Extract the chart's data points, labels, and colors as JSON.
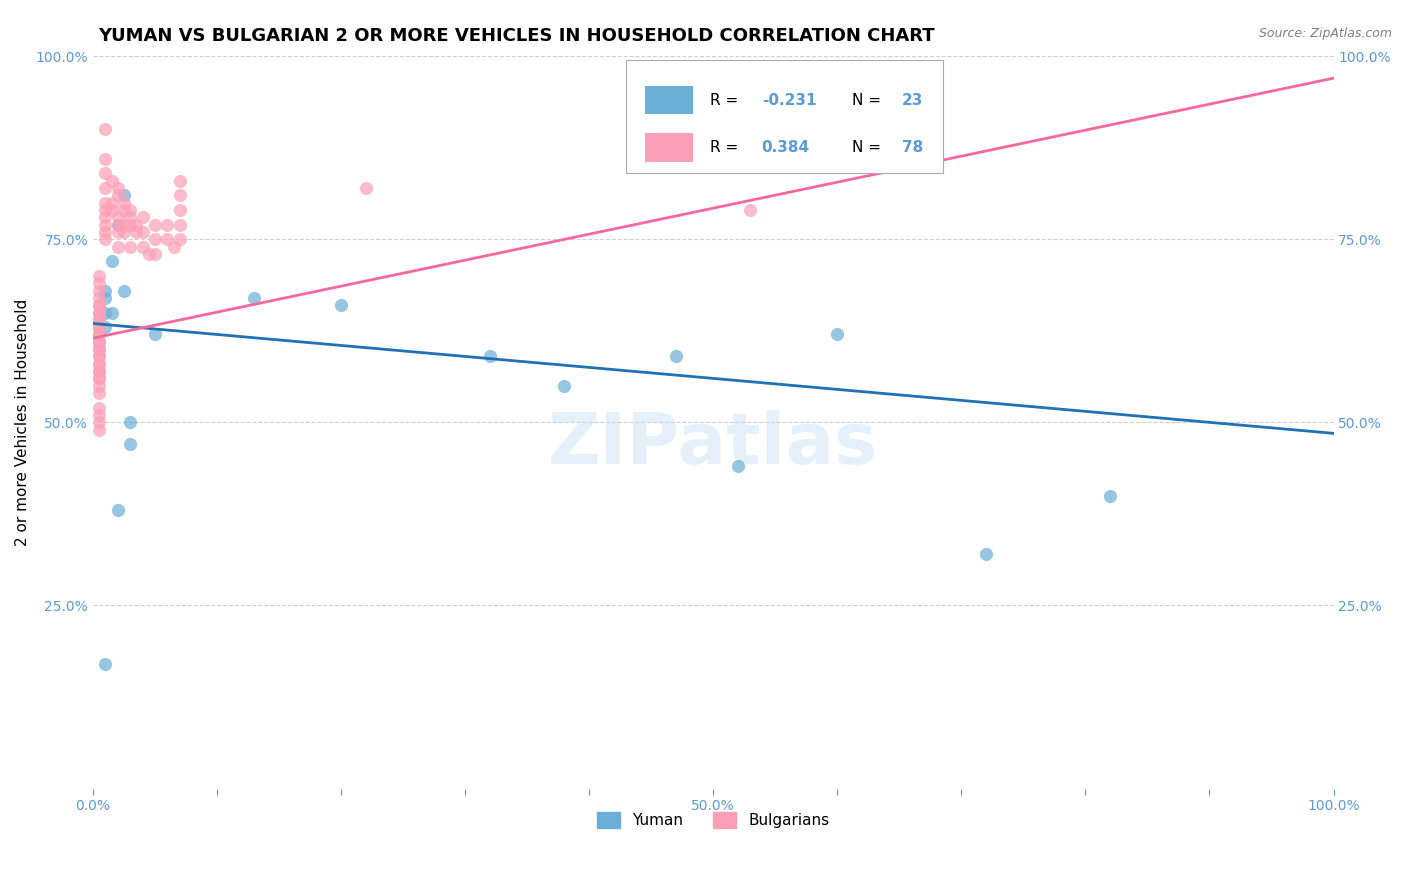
{
  "title": "YUMAN VS BULGARIAN 2 OR MORE VEHICLES IN HOUSEHOLD CORRELATION CHART",
  "source_text": "Source: ZipAtlas.com",
  "ylabel": "2 or more Vehicles in Household",
  "xlim": [
    0.0,
    1.0
  ],
  "ylim": [
    0.0,
    1.0
  ],
  "xticks": [
    0.0,
    0.1,
    0.2,
    0.3,
    0.4,
    0.5,
    0.6,
    0.7,
    0.8,
    0.9,
    1.0
  ],
  "yticks": [
    0.0,
    0.25,
    0.5,
    0.75,
    1.0
  ],
  "ytick_labels": [
    "",
    "25.0%",
    "50.0%",
    "75.0%",
    "100.0%"
  ],
  "xtick_labels": [
    "0.0%",
    "",
    "",
    "",
    "",
    "50.0%",
    "",
    "",
    "",
    "",
    "100.0%"
  ],
  "bg_color": "#ffffff",
  "watermark": "ZIPatlas",
  "blue_color": "#6baed6",
  "pink_color": "#fa9fb5",
  "blue_line_color": "#2171b5",
  "pink_line_color": "#f768a1",
  "legend_R_blue": "-0.231",
  "legend_N_blue": "23",
  "legend_R_pink": "0.384",
  "legend_N_pink": "78",
  "yuman_label": "Yuman",
  "bulgarian_label": "Bulgarians",
  "blue_scatter_x": [
    0.02,
    0.01,
    0.015,
    0.01,
    0.01,
    0.02,
    0.025,
    0.01,
    0.13,
    0.2,
    0.32,
    0.38,
    0.47,
    0.52,
    0.6,
    0.72,
    0.82,
    0.03,
    0.03,
    0.015,
    0.025,
    0.05,
    0.01
  ],
  "blue_scatter_y": [
    0.38,
    0.67,
    0.72,
    0.63,
    0.68,
    0.77,
    0.81,
    0.65,
    0.67,
    0.66,
    0.59,
    0.55,
    0.59,
    0.44,
    0.62,
    0.32,
    0.4,
    0.5,
    0.47,
    0.65,
    0.68,
    0.62,
    0.17
  ],
  "pink_scatter_x": [
    0.005,
    0.005,
    0.005,
    0.005,
    0.005,
    0.005,
    0.005,
    0.005,
    0.005,
    0.005,
    0.005,
    0.01,
    0.01,
    0.01,
    0.01,
    0.01,
    0.01,
    0.01,
    0.01,
    0.01,
    0.01,
    0.015,
    0.015,
    0.015,
    0.02,
    0.02,
    0.02,
    0.02,
    0.02,
    0.02,
    0.025,
    0.025,
    0.025,
    0.025,
    0.03,
    0.03,
    0.03,
    0.03,
    0.035,
    0.035,
    0.04,
    0.04,
    0.04,
    0.045,
    0.05,
    0.05,
    0.05,
    0.06,
    0.06,
    0.065,
    0.07,
    0.07,
    0.07,
    0.07,
    0.07,
    0.005,
    0.005,
    0.005,
    0.005,
    0.005,
    0.005,
    0.005,
    0.005,
    0.005,
    0.005,
    0.005,
    0.005,
    0.005,
    0.005,
    0.005,
    0.005,
    0.005,
    0.22,
    0.53,
    0.005,
    0.005,
    0.005,
    0.005
  ],
  "pink_scatter_y": [
    0.66,
    0.65,
    0.64,
    0.63,
    0.62,
    0.61,
    0.6,
    0.59,
    0.58,
    0.57,
    0.56,
    0.9,
    0.86,
    0.84,
    0.82,
    0.8,
    0.79,
    0.78,
    0.77,
    0.76,
    0.75,
    0.83,
    0.8,
    0.79,
    0.82,
    0.81,
    0.78,
    0.77,
    0.76,
    0.74,
    0.8,
    0.79,
    0.77,
    0.76,
    0.79,
    0.78,
    0.77,
    0.74,
    0.77,
    0.76,
    0.78,
    0.76,
    0.74,
    0.73,
    0.77,
    0.75,
    0.73,
    0.77,
    0.75,
    0.74,
    0.83,
    0.81,
    0.79,
    0.77,
    0.75,
    0.7,
    0.69,
    0.68,
    0.67,
    0.66,
    0.65,
    0.64,
    0.63,
    0.62,
    0.61,
    0.6,
    0.59,
    0.58,
    0.57,
    0.56,
    0.55,
    0.54,
    0.82,
    0.79,
    0.52,
    0.51,
    0.5,
    0.49
  ],
  "blue_line_x": [
    0.0,
    1.0
  ],
  "blue_line_y": [
    0.635,
    0.485
  ],
  "pink_line_x": [
    0.0,
    1.0
  ],
  "pink_line_y": [
    0.615,
    0.97
  ],
  "axis_color": "#5b9bd5",
  "grid_color": "#d0d0d0",
  "title_fontsize": 13,
  "label_fontsize": 11
}
